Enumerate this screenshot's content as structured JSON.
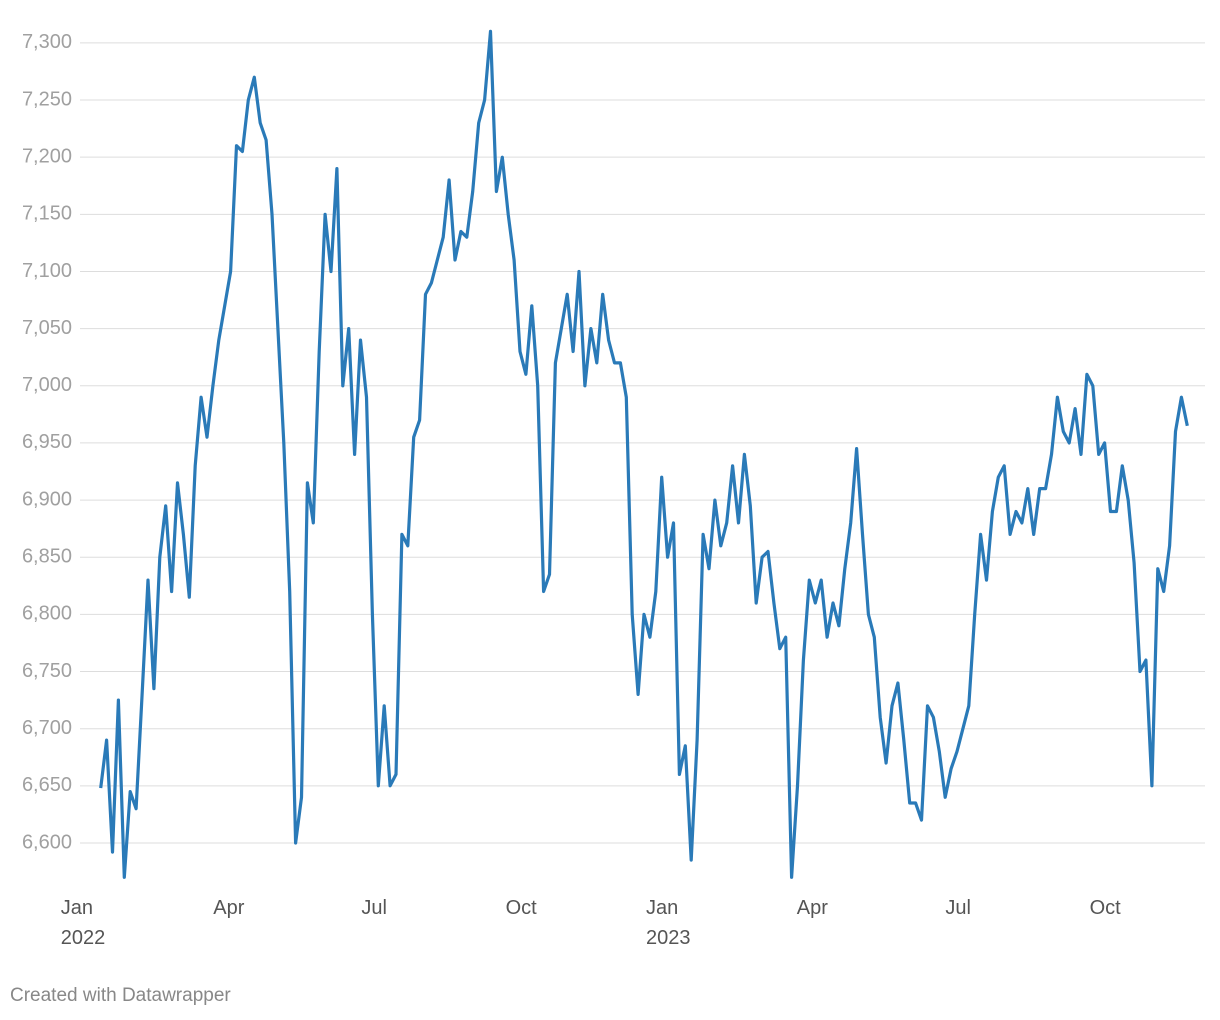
{
  "chart_data": {
    "type": "line",
    "color": "#2a7ab8",
    "footer": "Created with Datawrapper",
    "values": [
      6648,
      6690,
      6592,
      6725,
      6570,
      6645,
      6630,
      6730,
      6830,
      6735,
      6850,
      6895,
      6820,
      6915,
      6870,
      6815,
      6930,
      6990,
      6955,
      7000,
      7040,
      7070,
      7100,
      7210,
      7205,
      7250,
      7270,
      7230,
      7215,
      7150,
      7050,
      6950,
      6820,
      6600,
      6640,
      6915,
      6880,
      7030,
      7150,
      7100,
      7190,
      7000,
      7050,
      6940,
      7040,
      6990,
      6800,
      6650,
      6720,
      6650,
      6660,
      6870,
      6860,
      6955,
      6970,
      7080,
      7090,
      7110,
      7130,
      7180,
      7110,
      7135,
      7130,
      7170,
      7230,
      7250,
      7310,
      7170,
      7200,
      7150,
      7110,
      7030,
      7010,
      7070,
      7000,
      6820,
      6835,
      7020,
      7050,
      7080,
      7030,
      7100,
      7000,
      7050,
      7020,
      7080,
      7040,
      7020,
      7020,
      6990,
      6800,
      6730,
      6800,
      6780,
      6820,
      6920,
      6850,
      6880,
      6660,
      6685,
      6585,
      6690,
      6870,
      6840,
      6900,
      6860,
      6880,
      6930,
      6880,
      6940,
      6895,
      6810,
      6850,
      6855,
      6810,
      6770,
      6780,
      6570,
      6650,
      6760,
      6830,
      6810,
      6830,
      6780,
      6810,
      6790,
      6840,
      6880,
      6945,
      6870,
      6800,
      6780,
      6710,
      6670,
      6720,
      6740,
      6690,
      6635,
      6635,
      6620,
      6720,
      6710,
      6680,
      6640,
      6665,
      6680,
      6700,
      6720,
      6800,
      6870,
      6830,
      6890,
      6920,
      6930,
      6870,
      6890,
      6880,
      6910,
      6870,
      6910,
      6910,
      6940,
      6990,
      6960,
      6950,
      6980,
      6940,
      7010,
      7000,
      6940,
      6950,
      6890,
      6890,
      6930,
      6900,
      6845,
      6750,
      6760,
      6650,
      6840,
      6820,
      6860,
      6960,
      6990,
      6965
    ],
    "xlim": [
      -3,
      187
    ],
    "xticks": [
      {
        "value": -3,
        "label": "Jan\n2022"
      },
      {
        "value": 21.7,
        "label": "Apr"
      },
      {
        "value": 46.3,
        "label": "Jul"
      },
      {
        "value": 71.2,
        "label": "Oct"
      },
      {
        "value": 96.1,
        "label": "Jan\n2023"
      },
      {
        "value": 120.5,
        "label": "Apr"
      },
      {
        "value": 145.2,
        "label": "Jul"
      },
      {
        "value": 170.1,
        "label": "Oct"
      }
    ],
    "ylim": [
      6565,
      7320
    ],
    "yticks": [
      {
        "value": 6600,
        "label": "6,600"
      },
      {
        "value": 6650,
        "label": "6,650"
      },
      {
        "value": 6700,
        "label": "6,700"
      },
      {
        "value": 6750,
        "label": "6,750"
      },
      {
        "value": 6800,
        "label": "6,800"
      },
      {
        "value": 6850,
        "label": "6,850"
      },
      {
        "value": 6900,
        "label": "6,900"
      },
      {
        "value": 6950,
        "label": "6,950"
      },
      {
        "value": 7000,
        "label": "7,000"
      },
      {
        "value": 7050,
        "label": "7,050"
      },
      {
        "value": 7100,
        "label": "7,100"
      },
      {
        "value": 7150,
        "label": "7,150"
      },
      {
        "value": 7200,
        "label": "7,200"
      },
      {
        "value": 7250,
        "label": "7,250"
      },
      {
        "value": 7300,
        "label": "7,300"
      }
    ],
    "grid": true
  }
}
